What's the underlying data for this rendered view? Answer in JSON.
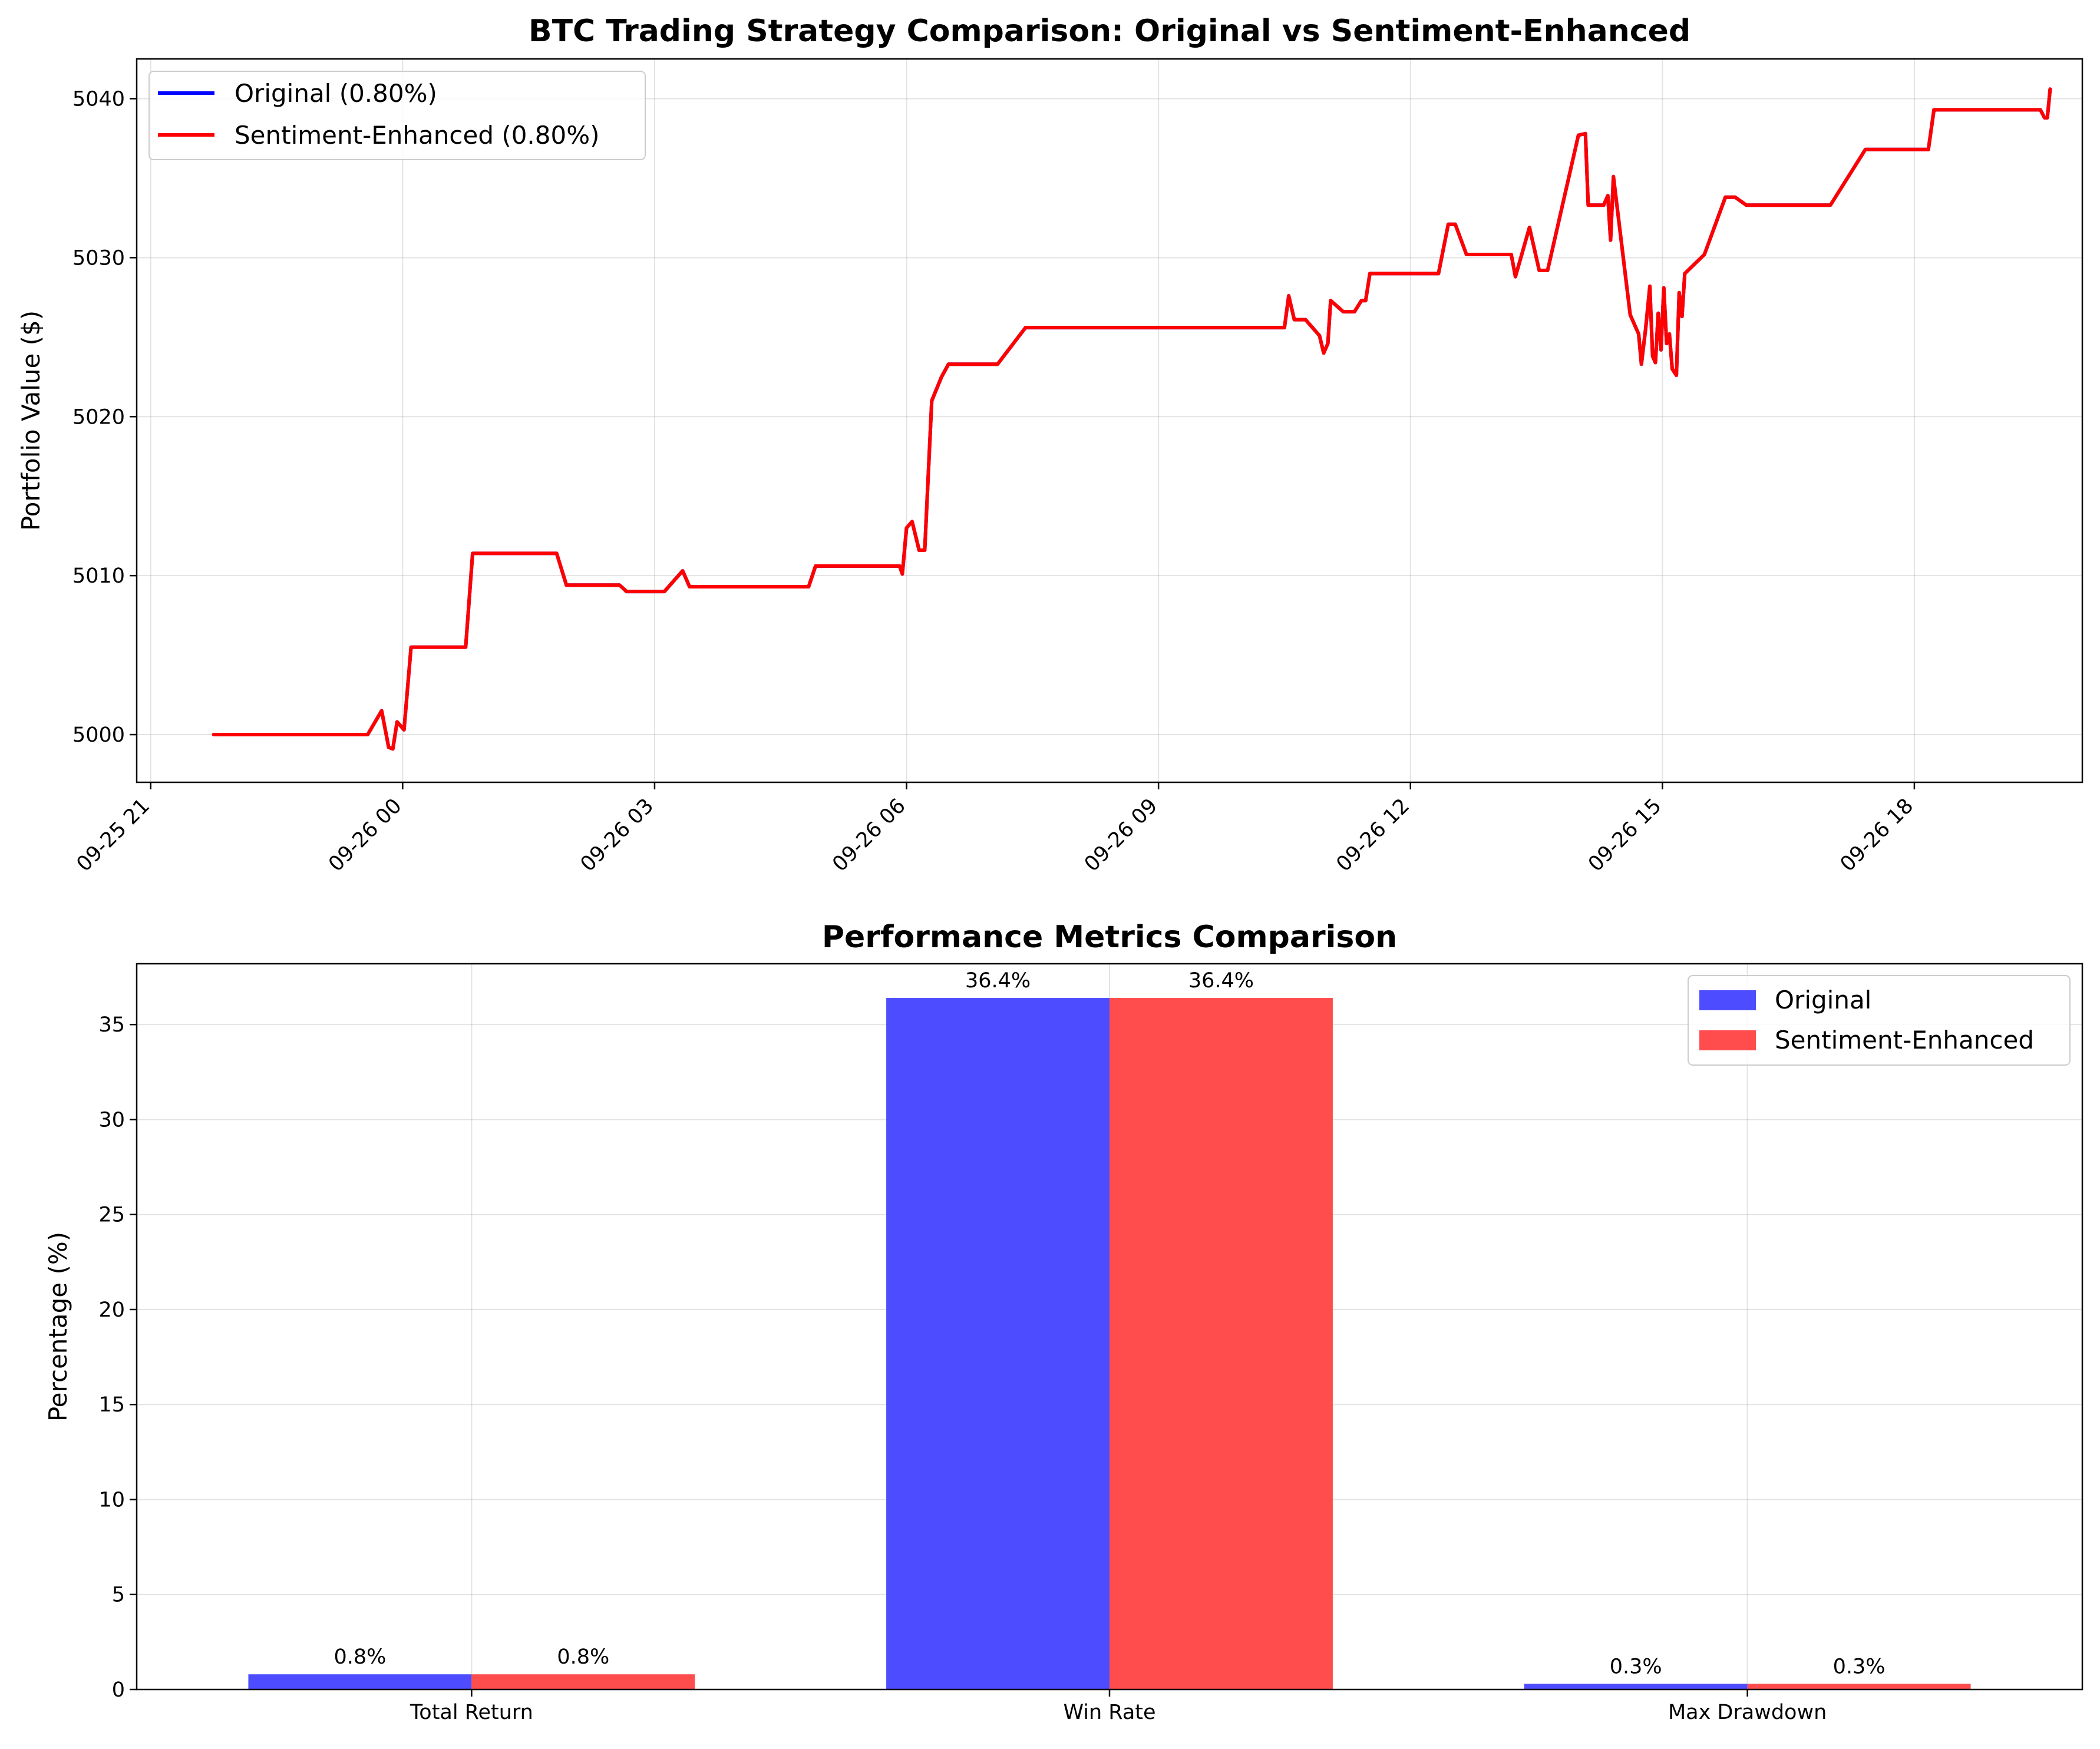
{
  "colors": {
    "original": "#0000ff",
    "sentiment": "#ff0000",
    "original_bar": "#4d4dff",
    "sentiment_bar": "#ff4d4d"
  },
  "chart_data": [
    {
      "type": "line",
      "title": "BTC Trading Strategy Comparison: Original vs Sentiment-Enhanced",
      "xlabel": "",
      "ylabel": "Portfolio Value ($)",
      "x_tick_labels": [
        "09-25 21",
        "09-26 00",
        "09-26 03",
        "09-26 06",
        "09-26 09",
        "09-26 12",
        "09-26 15",
        "09-26 18"
      ],
      "y_ticks": [
        5000,
        5010,
        5020,
        5030,
        5040
      ],
      "xlim": [
        "2025-09-25 20:50",
        "2025-09-26 20:00"
      ],
      "ylim": [
        4997,
        5042.5
      ],
      "grid": true,
      "legend_position": "upper left",
      "legend": [
        "Original (0.80%)",
        "Sentiment-Enhanced (0.80%)"
      ],
      "series": [
        {
          "name": "Original (0.80%)",
          "color": "#0000ff",
          "points": [
            [
              "2025-09-25 21:45",
              5000.0
            ],
            [
              "2025-09-25 23:35",
              5000.0
            ],
            [
              "2025-09-25 23:45",
              5001.5
            ],
            [
              "2025-09-25 23:50",
              4999.2
            ],
            [
              "2025-09-25 23:53",
              4999.1
            ],
            [
              "2025-09-25 23:56",
              5000.8
            ],
            [
              "2025-09-26 00:01",
              5000.3
            ],
            [
              "2025-09-26 00:06",
              5005.5
            ],
            [
              "2025-09-26 00:45",
              5005.5
            ],
            [
              "2025-09-26 00:50",
              5011.4
            ],
            [
              "2025-09-26 01:50",
              5011.4
            ],
            [
              "2025-09-26 01:57",
              5009.4
            ],
            [
              "2025-09-26 02:35",
              5009.4
            ],
            [
              "2025-09-26 02:40",
              5009.0
            ],
            [
              "2025-09-26 03:07",
              5009.0
            ],
            [
              "2025-09-26 03:20",
              5010.3
            ],
            [
              "2025-09-26 03:25",
              5009.3
            ],
            [
              "2025-09-26 04:50",
              5009.3
            ],
            [
              "2025-09-26 04:55",
              5010.6
            ],
            [
              "2025-09-26 05:55",
              5010.6
            ],
            [
              "2025-09-26 05:57",
              5010.1
            ],
            [
              "2025-09-26 06:00",
              5013.0
            ],
            [
              "2025-09-26 06:04",
              5013.4
            ],
            [
              "2025-09-26 06:09",
              5011.6
            ],
            [
              "2025-09-26 06:13",
              5011.6
            ],
            [
              "2025-09-26 06:18",
              5021.0
            ],
            [
              "2025-09-26 06:25",
              5022.5
            ],
            [
              "2025-09-26 06:30",
              5023.3
            ],
            [
              "2025-09-26 07:05",
              5023.3
            ],
            [
              "2025-09-26 07:25",
              5025.6
            ],
            [
              "2025-09-26 10:30",
              5025.6
            ],
            [
              "2025-09-26 10:33",
              5027.6
            ],
            [
              "2025-09-26 10:37",
              5026.1
            ],
            [
              "2025-09-26 10:45",
              5026.1
            ],
            [
              "2025-09-26 10:55",
              5025.1
            ],
            [
              "2025-09-26 10:58",
              5024.0
            ],
            [
              "2025-09-26 11:01",
              5024.6
            ],
            [
              "2025-09-26 11:03",
              5027.3
            ],
            [
              "2025-09-26 11:12",
              5026.6
            ],
            [
              "2025-09-26 11:20",
              5026.6
            ],
            [
              "2025-09-26 11:25",
              5027.3
            ],
            [
              "2025-09-26 11:28",
              5027.3
            ],
            [
              "2025-09-26 11:31",
              5029.0
            ],
            [
              "2025-09-26 12:20",
              5029.0
            ],
            [
              "2025-09-26 12:27",
              5032.1
            ],
            [
              "2025-09-26 12:32",
              5032.1
            ],
            [
              "2025-09-26 12:40",
              5030.2
            ],
            [
              "2025-09-26 13:12",
              5030.2
            ],
            [
              "2025-09-26 13:15",
              5028.8
            ],
            [
              "2025-09-26 13:25",
              5031.9
            ],
            [
              "2025-09-26 13:32",
              5029.2
            ],
            [
              "2025-09-26 13:38",
              5029.2
            ],
            [
              "2025-09-26 14:00",
              5037.7
            ],
            [
              "2025-09-26 14:05",
              5037.8
            ],
            [
              "2025-09-26 14:07",
              5033.3
            ],
            [
              "2025-09-26 14:18",
              5033.3
            ],
            [
              "2025-09-26 14:21",
              5033.9
            ],
            [
              "2025-09-26 14:23",
              5031.1
            ],
            [
              "2025-09-26 14:25",
              5035.1
            ],
            [
              "2025-09-26 14:37",
              5026.4
            ],
            [
              "2025-09-26 14:43",
              5025.2
            ],
            [
              "2025-09-26 14:45",
              5023.3
            ],
            [
              "2025-09-26 14:48",
              5025.5
            ],
            [
              "2025-09-26 14:51",
              5028.2
            ],
            [
              "2025-09-26 14:53",
              5023.8
            ],
            [
              "2025-09-26 14:55",
              5023.4
            ],
            [
              "2025-09-26 14:57",
              5026.5
            ],
            [
              "2025-09-26 14:59",
              5024.2
            ],
            [
              "2025-09-26 15:01",
              5028.1
            ],
            [
              "2025-09-26 15:03",
              5024.6
            ],
            [
              "2025-09-26 15:05",
              5025.2
            ],
            [
              "2025-09-26 15:07",
              5023.0
            ],
            [
              "2025-09-26 15:10",
              5022.6
            ],
            [
              "2025-09-26 15:12",
              5027.8
            ],
            [
              "2025-09-26 15:14",
              5026.3
            ],
            [
              "2025-09-26 15:16",
              5029.0
            ],
            [
              "2025-09-26 15:30",
              5030.2
            ],
            [
              "2025-09-26 15:45",
              5033.8
            ],
            [
              "2025-09-26 15:52",
              5033.8
            ],
            [
              "2025-09-26 16:00",
              5033.3
            ],
            [
              "2025-09-26 17:00",
              5033.3
            ],
            [
              "2025-09-26 17:25",
              5036.8
            ],
            [
              "2025-09-26 18:10",
              5036.8
            ],
            [
              "2025-09-26 18:14",
              5039.3
            ],
            [
              "2025-09-26 19:30",
              5039.3
            ],
            [
              "2025-09-26 19:33",
              5038.8
            ],
            [
              "2025-09-26 19:35",
              5038.8
            ],
            [
              "2025-09-26 19:37",
              5040.6
            ]
          ]
        },
        {
          "name": "Sentiment-Enhanced (0.80%)",
          "color": "#ff0000",
          "same_as": "Original (0.80%)"
        }
      ]
    },
    {
      "type": "bar",
      "title": "Performance Metrics Comparison",
      "xlabel": "",
      "ylabel": "Percentage (%)",
      "categories": [
        "Total Return",
        "Win Rate",
        "Max Drawdown"
      ],
      "y_ticks": [
        0,
        5,
        10,
        15,
        20,
        25,
        30,
        35
      ],
      "ylim": [
        0,
        38.2
      ],
      "grid": true,
      "legend_position": "upper right",
      "series": [
        {
          "name": "Original",
          "color": "#4d4dff",
          "values": [
            0.8,
            36.4,
            0.3
          ],
          "labels": [
            "0.8%",
            "36.4%",
            "0.3%"
          ]
        },
        {
          "name": "Sentiment-Enhanced",
          "color": "#ff4d4d",
          "values": [
            0.8,
            36.4,
            0.3
          ],
          "labels": [
            "0.8%",
            "36.4%",
            "0.3%"
          ]
        }
      ]
    }
  ]
}
